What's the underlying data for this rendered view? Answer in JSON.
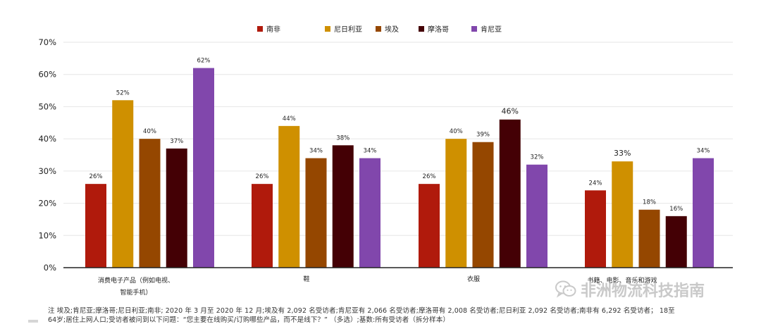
{
  "chart_data": {
    "type": "bar",
    "title": "",
    "xlabel": "",
    "ylabel": "",
    "ylim": [
      0,
      70
    ],
    "yticks": [
      "0%",
      "10%",
      "20%",
      "30%",
      "40%",
      "50%",
      "60%",
      "70%"
    ],
    "grid": true,
    "legend_position": "top-center",
    "categories": [
      "消费电子产品（例如电视、智能手机）",
      "鞋",
      "衣服",
      "书籍、电影、音乐和游戏"
    ],
    "series": [
      {
        "name": "南非",
        "color": "#b01a0c",
        "values": [
          26,
          26,
          26,
          24
        ],
        "labels": [
          "26%",
          "26%",
          "26%",
          "24%"
        ]
      },
      {
        "name": "尼日利亚",
        "color": "#cf9000",
        "values": [
          52,
          44,
          40,
          33
        ],
        "labels": [
          "52%",
          "44%",
          "40%",
          "33%"
        ]
      },
      {
        "name": "埃及",
        "color": "#954700",
        "values": [
          40,
          34,
          39,
          18
        ],
        "labels": [
          "40%",
          "34%",
          "39%",
          "18%"
        ]
      },
      {
        "name": "摩洛哥",
        "color": "#440005",
        "values": [
          37,
          38,
          46,
          16
        ],
        "labels": [
          "37%",
          "38%",
          "46%",
          "16%"
        ]
      },
      {
        "name": "肯尼亚",
        "color": "#8147ac",
        "values": [
          62,
          34,
          32,
          34
        ],
        "labels": [
          "62%",
          "34%",
          "32%",
          "34%"
        ]
      }
    ]
  },
  "notes": {
    "line1": "注 埃及;肯尼亚;摩洛哥;尼日利亚;南非; 2020 年 3 月至 2020 年 12 月;埃及有 2,092 名受访者;肯尼亚有 2,066 名受访者;摩洛哥有 2,008 名受访者;尼日利亚 2,092 名受访者;南非有 6,292 名受访者；  18至",
    "line2": "64岁;居住上网人口;受访者被问到以下问题：“您主要在线购买/订购哪些产品，而不是线下？”  （多选）;基数:所有受访者（拆分样本）"
  },
  "watermark": {
    "text": "非洲物流科技指南",
    "icon": "wechat-icon"
  },
  "colors": {
    "grid": "#e6e6e6",
    "axis": "#222222",
    "text": "#222222",
    "watermark": "#c9c9c9"
  }
}
